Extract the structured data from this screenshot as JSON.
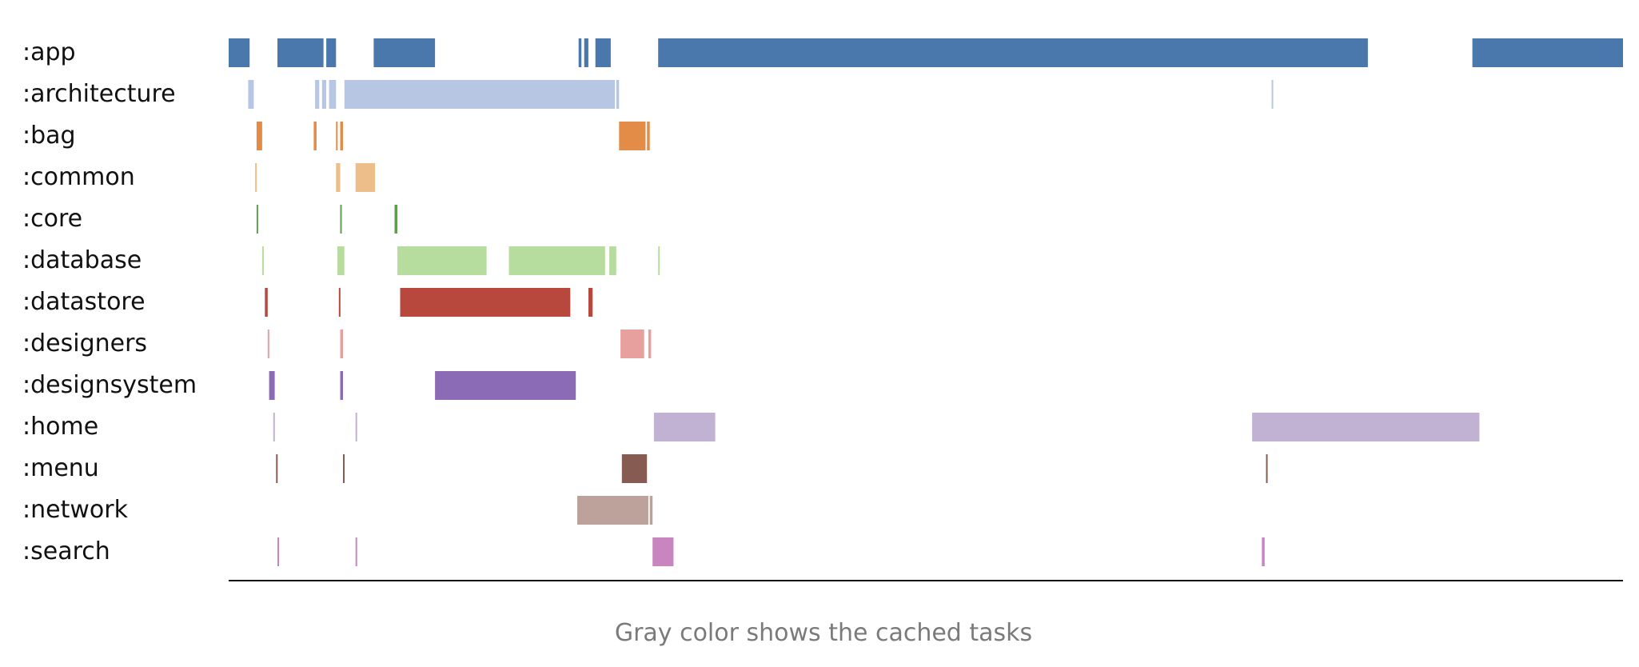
{
  "chart_data": {
    "type": "timeline",
    "caption": "Gray color shows the cached tasks",
    "x_range": [
      0,
      1000
    ],
    "rows": [
      {
        "label": ":app",
        "color": "#4a78ad",
        "tasks": [
          [
            0,
            15
          ],
          [
            35,
            68
          ],
          [
            70,
            77
          ],
          [
            104,
            148
          ],
          [
            251,
            253
          ],
          [
            255,
            258
          ],
          [
            263,
            274
          ],
          [
            308,
            817
          ],
          [
            892,
            1000
          ]
        ]
      },
      {
        "label": ":architecture",
        "color": "#b6c6e3",
        "tasks": [
          [
            14,
            18
          ],
          [
            62,
            65
          ],
          [
            67,
            70
          ],
          [
            72,
            77
          ],
          [
            83,
            277
          ],
          [
            278,
            280
          ],
          [
            748,
            749
          ]
        ]
      },
      {
        "label": ":bag",
        "color": "#e38c47",
        "tasks": [
          [
            20,
            24
          ],
          [
            61,
            63
          ],
          [
            77,
            78
          ],
          [
            80,
            82
          ],
          [
            280,
            299
          ],
          [
            300,
            302
          ]
        ]
      },
      {
        "label": ":common",
        "color": "#eebe8a",
        "tasks": [
          [
            19,
            20
          ],
          [
            77,
            80
          ],
          [
            91,
            105
          ]
        ]
      },
      {
        "label": ":core",
        "color": "#5e9e4f",
        "tasks": [
          [
            20,
            21
          ],
          [
            80,
            81
          ],
          [
            119,
            121
          ]
        ]
      },
      {
        "label": ":database",
        "color": "#b7dd9e",
        "tasks": [
          [
            24,
            25
          ],
          [
            78,
            83
          ],
          [
            121,
            185
          ],
          [
            201,
            270
          ],
          [
            273,
            278
          ],
          [
            308,
            309
          ]
        ]
      },
      {
        "label": ":datastore",
        "color": "#b8473d",
        "tasks": [
          [
            26,
            28
          ],
          [
            79,
            80
          ],
          [
            123,
            245
          ],
          [
            258,
            261
          ]
        ]
      },
      {
        "label": ":designers",
        "color": "#e8a09e",
        "tasks": [
          [
            28,
            29
          ],
          [
            80,
            82
          ],
          [
            281,
            298
          ],
          [
            301,
            303
          ]
        ]
      },
      {
        "label": ":designsystem",
        "color": "#8b6bb5",
        "tasks": [
          [
            29,
            33
          ],
          [
            80,
            82
          ],
          [
            148,
            249
          ]
        ]
      },
      {
        "label": ":home",
        "color": "#c1b2d4",
        "tasks": [
          [
            32,
            33
          ],
          [
            91,
            92
          ],
          [
            305,
            349
          ],
          [
            734,
            897
          ]
        ]
      },
      {
        "label": ":menu",
        "color": "#855b52",
        "tasks": [
          [
            34,
            35
          ],
          [
            82,
            83
          ],
          [
            282,
            300
          ],
          [
            744,
            745
          ]
        ]
      },
      {
        "label": ":network",
        "color": "#bca29b",
        "tasks": [
          [
            250,
            301
          ],
          [
            302,
            304
          ]
        ]
      },
      {
        "label": ":search",
        "color": "#c885bf",
        "tasks": [
          [
            35,
            36
          ],
          [
            91,
            92
          ],
          [
            304,
            319
          ],
          [
            741,
            743
          ]
        ]
      }
    ]
  }
}
